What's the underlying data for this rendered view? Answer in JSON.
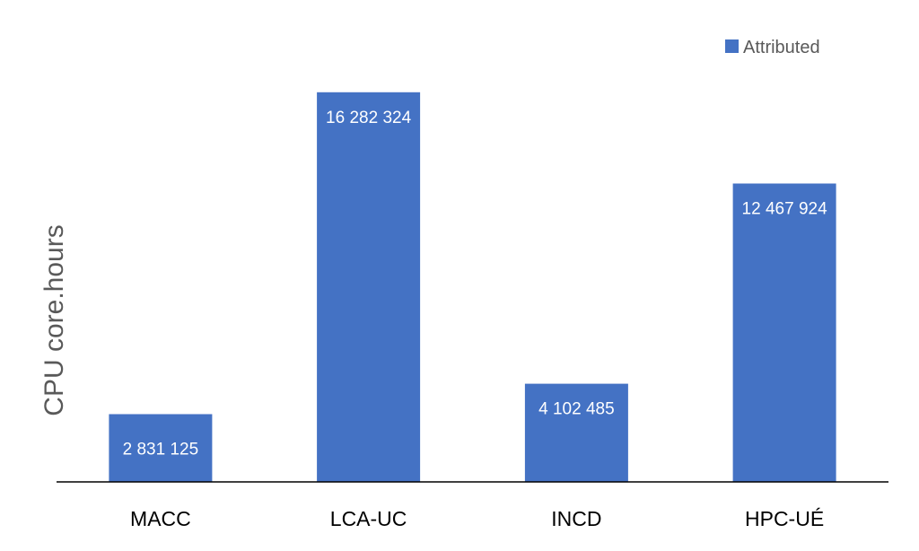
{
  "chart_data": {
    "type": "bar",
    "categories": [
      "MACC",
      "LCA-UC",
      "INCD",
      "HPC-UÉ"
    ],
    "series": [
      {
        "name": "Attributed",
        "values": [
          2831125,
          16282324,
          4102485,
          12467924
        ],
        "labels": [
          "2 831 125",
          "16 282 324",
          "4 102 485",
          "12 467 924"
        ],
        "color": "#4472C4"
      }
    ],
    "ylabel": "CPU core.hours",
    "xlabel": "",
    "ylim": [
      0,
      18000000
    ],
    "grid": false,
    "legend_position": "top-right",
    "axis_color": "#000000"
  }
}
